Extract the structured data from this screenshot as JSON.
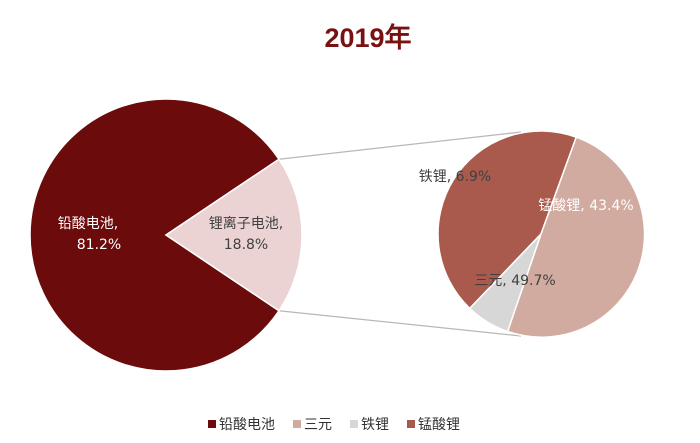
{
  "chart_data": [
    {
      "type": "pie",
      "title": "2019年",
      "categories": [
        "铅酸电池",
        "锂离子电池"
      ],
      "values": [
        81.2,
        18.8
      ],
      "unit": "%",
      "data_labels": [
        {
          "name": "铅酸电池,",
          "value": "81.2%"
        },
        {
          "name": "锂离子电池,",
          "value": "18.8%"
        }
      ],
      "colors": [
        "#6b0b0b",
        "#ecd3d3"
      ]
    },
    {
      "type": "pie",
      "categories": [
        "三元",
        "铁锂",
        "锰酸锂"
      ],
      "values": [
        49.7,
        6.9,
        43.4
      ],
      "unit": "%",
      "data_labels": [
        {
          "text": "三元, 49.7%"
        },
        {
          "text": "铁锂, 6.9%"
        },
        {
          "text": "锰酸锂, 43.4%"
        }
      ],
      "colors": [
        "#d2aba0",
        "#d7d7d7",
        "#a95a4c"
      ]
    }
  ],
  "legend": {
    "items": [
      {
        "label": "铅酸电池",
        "color": "#6b0b0b"
      },
      {
        "label": "三元",
        "color": "#d2aba0"
      },
      {
        "label": "铁锂",
        "color": "#d7d7d7"
      },
      {
        "label": "锰酸锂",
        "color": "#a95a4c"
      }
    ]
  },
  "colors": {
    "title": "#7b1010",
    "connector": "#b7b7b7"
  }
}
